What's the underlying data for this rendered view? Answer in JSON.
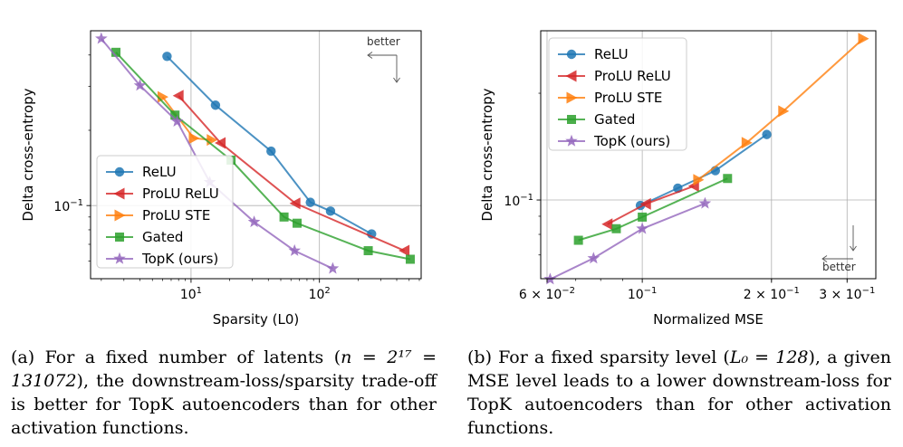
{
  "colors": {
    "relu": "#1f77b4",
    "prolu_relu": "#d62728",
    "prolu_ste": "#ff7f0e",
    "gated": "#2ca02c",
    "topk": "#9467bd"
  },
  "chart_data": [
    {
      "type": "line",
      "xscale": "log",
      "yscale": "log",
      "xlabel": "Sparsity (L0)",
      "ylabel": "Delta cross-entropy",
      "xlim": [
        1.65,
        620
      ],
      "ylim": [
        0.051,
        0.5
      ],
      "xticks": [
        {
          "value": 10,
          "label": "10",
          "sup": "1"
        },
        {
          "value": 100,
          "label": "10",
          "sup": "2"
        }
      ],
      "yticks": [
        {
          "value": 0.1,
          "label": "10",
          "sup": "−1"
        }
      ],
      "grid": true,
      "legend_position": "lower-left",
      "annotation": "better",
      "annotation_position": "top-right",
      "series": [
        {
          "name": "ReLU",
          "key": "relu",
          "marker": "circle",
          "x": [
            6.5,
            15.5,
            42,
            85,
            122,
            255
          ],
          "y": [
            0.395,
            0.252,
            0.165,
            0.103,
            0.095,
            0.077
          ]
        },
        {
          "name": "ProLU ReLU",
          "key": "prolu_relu",
          "marker": "triangle-left",
          "x": [
            8,
            17,
            65,
            460
          ],
          "y": [
            0.275,
            0.178,
            0.102,
            0.066
          ]
        },
        {
          "name": "ProLU STE",
          "key": "prolu_ste",
          "marker": "triangle-right",
          "x": [
            6,
            10.5,
            14.5
          ],
          "y": [
            0.272,
            0.186,
            0.183
          ]
        },
        {
          "name": "Gated",
          "key": "gated",
          "marker": "square",
          "x": [
            2.6,
            7.5,
            20.5,
            53,
            67,
            240,
            510
          ],
          "y": [
            0.41,
            0.23,
            0.152,
            0.09,
            0.085,
            0.066,
            0.061
          ]
        },
        {
          "name": "TopK (ours)",
          "key": "topk",
          "marker": "star",
          "x": [
            2,
            4,
            7.8,
            14,
            31,
            64,
            127
          ],
          "y": [
            0.465,
            0.302,
            0.217,
            0.124,
            0.086,
            0.066,
            0.056
          ]
        }
      ]
    },
    {
      "type": "line",
      "xscale": "log",
      "yscale": "log",
      "xlabel": "Normalized MSE",
      "ylabel": "Delta cross-entropy",
      "xlim": [
        0.058,
        0.35
      ],
      "ylim": [
        0.06,
        0.3
      ],
      "xticks": [
        {
          "value": 0.06,
          "label": "6 × 10",
          "sup": "−2"
        },
        {
          "value": 0.1,
          "label": "10",
          "sup": "−1"
        },
        {
          "value": 0.2,
          "label": "2 × 10",
          "sup": "−1"
        },
        {
          "value": 0.3,
          "label": "3 × 10",
          "sup": "−1"
        }
      ],
      "yticks": [
        {
          "value": 0.1,
          "label": "10",
          "sup": "−1"
        }
      ],
      "grid": true,
      "legend_position": "top-left",
      "annotation": "better",
      "annotation_position": "bottom-right",
      "series": [
        {
          "name": "ReLU",
          "key": "relu",
          "marker": "circle",
          "x": [
            0.099,
            0.121,
            0.148,
            0.195
          ],
          "y": [
            0.0965,
            0.108,
            0.121,
            0.153
          ]
        },
        {
          "name": "ProLU ReLU",
          "key": "prolu_relu",
          "marker": "triangle-left",
          "x": [
            0.083,
            0.102,
            0.132
          ],
          "y": [
            0.0855,
            0.0975,
            0.1095
          ]
        },
        {
          "name": "ProLU STE",
          "key": "prolu_ste",
          "marker": "triangle-right",
          "x": [
            0.135,
            0.175,
            0.213,
            0.327
          ],
          "y": [
            0.114,
            0.145,
            0.178,
            0.285
          ]
        },
        {
          "name": "Gated",
          "key": "gated",
          "marker": "square",
          "x": [
            0.071,
            0.087,
            0.1,
            0.158
          ],
          "y": [
            0.077,
            0.083,
            0.0895,
            0.115
          ]
        },
        {
          "name": "TopK (ours)",
          "key": "topk",
          "marker": "star",
          "x": [
            0.061,
            0.077,
            0.1,
            0.14
          ],
          "y": [
            0.0598,
            0.0685,
            0.083,
            0.0978
          ]
        }
      ]
    }
  ],
  "captions": {
    "a": {
      "prefix": "(a) For a fixed number of latents (",
      "math": "n = 2¹⁷ = 131072",
      "suffix": "), the downstream-loss/sparsity trade-off is better for TopK autoencoders than for other activation functions."
    },
    "b": {
      "prefix": "(b) For a fixed sparsity level (",
      "math": "L₀ = 128",
      "suffix": "), a given MSE level leads to a lower downstream-loss for TopK autoencoders than for other activation functions."
    }
  }
}
